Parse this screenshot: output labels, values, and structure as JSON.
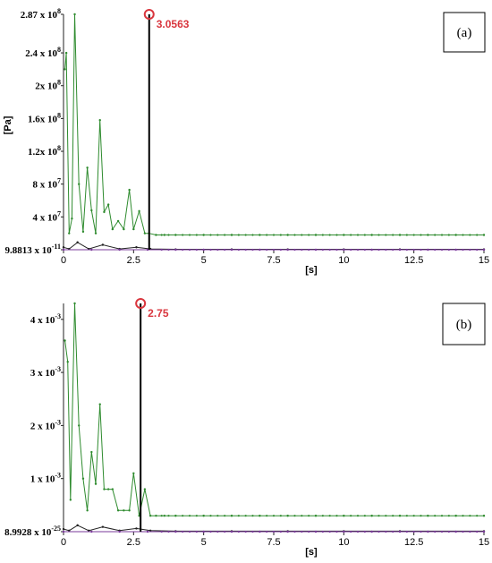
{
  "chart_data": [
    {
      "type": "line",
      "panel": "(a)",
      "ylabel": "[Pa]",
      "xlabel": "[s]",
      "xlim": [
        0,
        15
      ],
      "ylim": [
        0,
        287000000
      ],
      "grid": false,
      "yticks": [
        {
          "value": 287000000,
          "label": "2.87  x 10",
          "exp": "8"
        },
        {
          "value": 240000000,
          "label": "2.4  x 10",
          "exp": "8"
        },
        {
          "value": 200000000,
          "label": "2x 10",
          "exp": "8"
        },
        {
          "value": 160000000,
          "label": "1.6x 10",
          "exp": "8"
        },
        {
          "value": 120000000,
          "label": "1.2x 10",
          "exp": "8"
        },
        {
          "value": 80000000,
          "label": "8 x 10",
          "exp": "7"
        },
        {
          "value": 40000000,
          "label": "4 x 10",
          "exp": "7"
        },
        {
          "value": 0,
          "label": "9.8813 x 10",
          "exp": "-11"
        }
      ],
      "xticks": [
        {
          "value": 0,
          "label": "0"
        },
        {
          "value": 2.5,
          "label": "2.5"
        },
        {
          "value": 5,
          "label": "5"
        },
        {
          "value": 7.5,
          "label": "7.5"
        },
        {
          "value": 10,
          "label": "10"
        },
        {
          "value": 12.5,
          "label": "12.5"
        },
        {
          "value": 15,
          "label": "15"
        }
      ],
      "marker": {
        "x": 3.0563,
        "label": "3.0563"
      },
      "series": [
        {
          "color": "#2e8b2e",
          "x": [
            0.05,
            0.1,
            0.2,
            0.3,
            0.4,
            0.55,
            0.7,
            0.85,
            1.0,
            1.15,
            1.3,
            1.45,
            1.6,
            1.75,
            1.95,
            2.15,
            2.35,
            2.5,
            2.7,
            2.9,
            3.05,
            3.3,
            3.6,
            4,
            5,
            6,
            7,
            8,
            9,
            10,
            11,
            12,
            13,
            14,
            15
          ],
          "y": [
            220000000,
            240000000,
            20000000,
            38000000,
            287000000,
            80000000,
            22000000,
            100000000,
            48000000,
            20000000,
            158000000,
            46000000,
            55000000,
            25000000,
            35000000,
            25000000,
            73000000,
            25000000,
            47000000,
            20000000,
            20000000,
            18000000,
            18000000,
            18000000,
            18000000,
            18000000,
            18000000,
            18000000,
            18000000,
            18000000,
            18000000,
            18000000,
            18000000,
            18000000,
            18000000
          ]
        },
        {
          "color": "#222222",
          "x": [
            0,
            0.2,
            0.5,
            0.9,
            1.4,
            2.0,
            2.6,
            3.1,
            4,
            6,
            8,
            10,
            12,
            15
          ],
          "y": [
            3000000,
            1000000,
            9000000,
            1000000,
            6000000,
            1000000,
            3000000,
            1000000,
            500000,
            500000,
            500000,
            500000,
            500000,
            500000
          ]
        },
        {
          "color": "#7a3a9a",
          "x": [
            0,
            1,
            2,
            3,
            4,
            5,
            6,
            7,
            8,
            9,
            10,
            11,
            12,
            13,
            14,
            15
          ],
          "y": [
            0,
            0,
            0,
            0,
            0,
            0,
            0,
            0,
            0,
            0,
            0,
            0,
            0,
            0,
            0,
            0
          ]
        }
      ]
    },
    {
      "type": "line",
      "panel": "(b)",
      "ylabel": "",
      "xlabel": "[s]",
      "xlim": [
        0,
        15
      ],
      "ylim": [
        0,
        0.0043
      ],
      "grid": false,
      "yticks": [
        {
          "value": 0.004,
          "label": "4 x 10",
          "exp": "-3"
        },
        {
          "value": 0.003,
          "label": "3 x 10",
          "exp": "-3"
        },
        {
          "value": 0.002,
          "label": "2 x 10",
          "exp": "-3"
        },
        {
          "value": 0.001,
          "label": "1 x 10",
          "exp": "-3"
        },
        {
          "value": 0,
          "label": "8.9928 x 10",
          "exp": "-25"
        }
      ],
      "xticks": [
        {
          "value": 0,
          "label": "0"
        },
        {
          "value": 2.5,
          "label": "2.5"
        },
        {
          "value": 5,
          "label": "5"
        },
        {
          "value": 7.5,
          "label": "7.5"
        },
        {
          "value": 10,
          "label": "10"
        },
        {
          "value": 12.5,
          "label": "12.5"
        },
        {
          "value": 15,
          "label": "15"
        }
      ],
      "marker": {
        "x": 2.75,
        "label": "2.75"
      },
      "series": [
        {
          "color": "#2e8b2e",
          "x": [
            0.05,
            0.15,
            0.25,
            0.4,
            0.55,
            0.7,
            0.85,
            1.0,
            1.15,
            1.3,
            1.45,
            1.6,
            1.75,
            1.95,
            2.15,
            2.35,
            2.5,
            2.7,
            2.9,
            3.1,
            3.3,
            3.6,
            4,
            5,
            6,
            7,
            8,
            9,
            10,
            11,
            12,
            13,
            14,
            15
          ],
          "y": [
            0.0036,
            0.0032,
            0.0006,
            0.0043,
            0.002,
            0.001,
            0.0004,
            0.0015,
            0.0009,
            0.0024,
            0.0008,
            0.0008,
            0.0008,
            0.0004,
            0.0004,
            0.0004,
            0.0011,
            0.0003,
            0.0008,
            0.0003,
            0.0003,
            0.0003,
            0.0003,
            0.0003,
            0.0003,
            0.0003,
            0.0003,
            0.0003,
            0.0003,
            0.0003,
            0.0003,
            0.0003,
            0.0003,
            0.0003
          ]
        },
        {
          "color": "#222222",
          "x": [
            0,
            0.2,
            0.5,
            0.9,
            1.4,
            2.0,
            2.6,
            3.1,
            4,
            6,
            8,
            10,
            12,
            15
          ],
          "y": [
            5e-05,
            2e-05,
            0.00012,
            2e-05,
            9e-05,
            2e-05,
            6e-05,
            2e-05,
            1e-05,
            1e-05,
            1e-05,
            1e-05,
            1e-05,
            1e-05
          ]
        },
        {
          "color": "#7a3a9a",
          "x": [
            0,
            1,
            2,
            3,
            4,
            5,
            6,
            7,
            8,
            9,
            10,
            11,
            12,
            13,
            14,
            15
          ],
          "y": [
            0,
            0,
            0,
            0,
            0,
            0,
            0,
            0,
            0,
            0,
            0,
            0,
            0,
            0,
            0,
            0
          ]
        }
      ]
    }
  ]
}
